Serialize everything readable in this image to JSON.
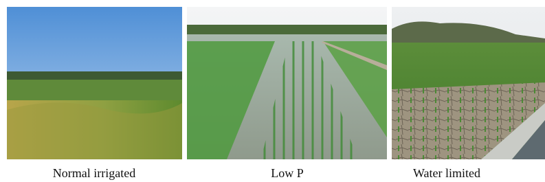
{
  "panels": [
    {
      "caption": "Normal irrigated"
    },
    {
      "caption": "Low P"
    },
    {
      "caption": "Water limited"
    }
  ]
}
